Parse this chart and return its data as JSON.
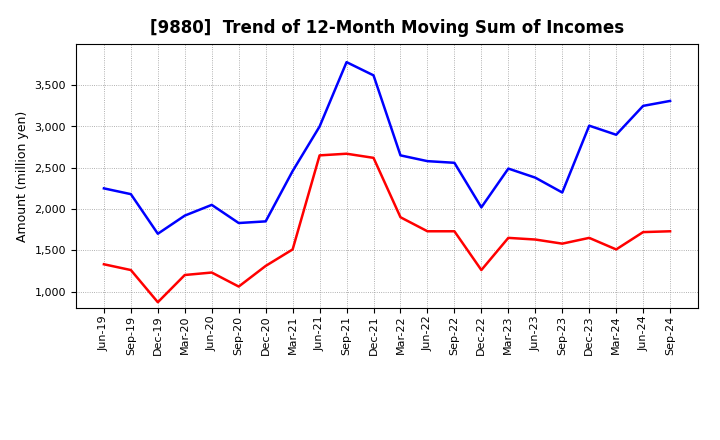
{
  "title": "[9880]  Trend of 12-Month Moving Sum of Incomes",
  "ylabel": "Amount (million yen)",
  "x_labels": [
    "Jun-19",
    "Sep-19",
    "Dec-19",
    "Mar-20",
    "Jun-20",
    "Sep-20",
    "Dec-20",
    "Mar-21",
    "Jun-21",
    "Sep-21",
    "Dec-21",
    "Mar-22",
    "Jun-22",
    "Sep-22",
    "Dec-22",
    "Mar-23",
    "Jun-23",
    "Sep-23",
    "Dec-23",
    "Mar-24",
    "Jun-24",
    "Sep-24"
  ],
  "ordinary_income": [
    2250,
    2180,
    1700,
    1920,
    2050,
    1830,
    1850,
    2460,
    3000,
    3780,
    3620,
    2650,
    2580,
    2560,
    2020,
    2490,
    2380,
    2200,
    3010,
    2900,
    3250,
    3310
  ],
  "net_income": [
    1330,
    1260,
    870,
    1200,
    1230,
    1060,
    1310,
    1510,
    2650,
    2670,
    2620,
    1900,
    1730,
    1730,
    1260,
    1650,
    1630,
    1580,
    1650,
    1510,
    1720,
    1730
  ],
  "ordinary_color": "#0000ff",
  "net_color": "#ff0000",
  "ylim": [
    800,
    4000
  ],
  "yticks": [
    1000,
    1500,
    2000,
    2500,
    3000,
    3500
  ],
  "background_color": "#ffffff",
  "grid_color": "#999999",
  "line_width": 1.8,
  "title_fontsize": 12,
  "label_fontsize": 9,
  "tick_fontsize": 8,
  "legend_fontsize": 9
}
